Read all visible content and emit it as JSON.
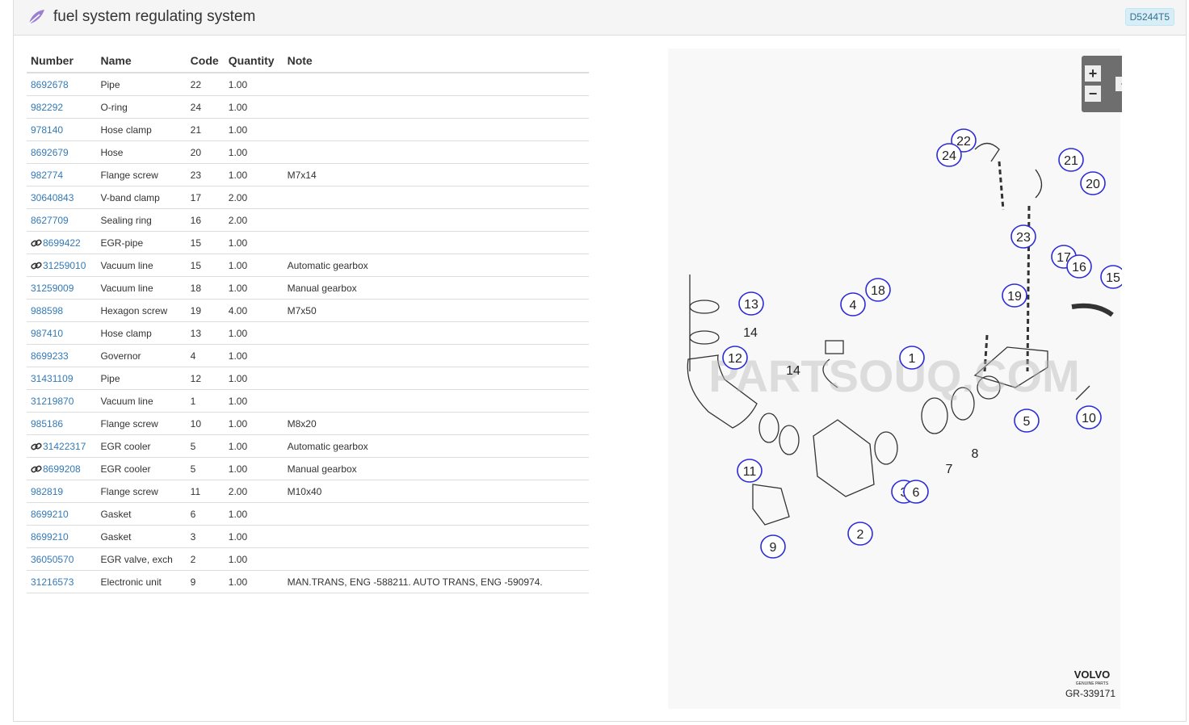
{
  "header": {
    "title": "fuel system regulating system",
    "badge": "D5244T5"
  },
  "table": {
    "columns": [
      "Number",
      "Name",
      "Code",
      "Quantity",
      "Note"
    ],
    "rows": [
      {
        "number": "8692678",
        "name": "Pipe",
        "code": "22",
        "quantity": "1.00",
        "note": ""
      },
      {
        "number": "982292",
        "name": "O-ring",
        "code": "24",
        "quantity": "1.00",
        "note": ""
      },
      {
        "number": "978140",
        "name": "Hose clamp",
        "code": "21",
        "quantity": "1.00",
        "note": ""
      },
      {
        "number": "8692679",
        "name": "Hose",
        "code": "20",
        "quantity": "1.00",
        "note": ""
      },
      {
        "number": "982774",
        "name": "Flange screw",
        "code": "23",
        "quantity": "1.00",
        "note": "M7x14"
      },
      {
        "number": "30640843",
        "name": "V-band clamp",
        "code": "17",
        "quantity": "2.00",
        "note": ""
      },
      {
        "number": "8627709",
        "name": "Sealing ring",
        "code": "16",
        "quantity": "2.00",
        "note": ""
      },
      {
        "number": "8699422",
        "name": "EGR-pipe",
        "code": "15",
        "quantity": "1.00",
        "note": "",
        "link": true
      },
      {
        "number": "31259010",
        "name": "Vacuum line",
        "code": "15",
        "quantity": "1.00",
        "note": "Automatic gearbox",
        "link": true
      },
      {
        "number": "31259009",
        "name": "Vacuum line",
        "code": "18",
        "quantity": "1.00",
        "note": "Manual gearbox"
      },
      {
        "number": "988598",
        "name": "Hexagon screw",
        "code": "19",
        "quantity": "4.00",
        "note": "M7x50"
      },
      {
        "number": "987410",
        "name": "Hose clamp",
        "code": "13",
        "quantity": "1.00",
        "note": ""
      },
      {
        "number": "8699233",
        "name": "Governor",
        "code": "4",
        "quantity": "1.00",
        "note": ""
      },
      {
        "number": "31431109",
        "name": "Pipe",
        "code": "12",
        "quantity": "1.00",
        "note": ""
      },
      {
        "number": "31219870",
        "name": "Vacuum line",
        "code": "1",
        "quantity": "1.00",
        "note": ""
      },
      {
        "number": "985186",
        "name": "Flange screw",
        "code": "10",
        "quantity": "1.00",
        "note": "M8x20"
      },
      {
        "number": "31422317",
        "name": "EGR cooler",
        "code": "5",
        "quantity": "1.00",
        "note": "Automatic gearbox",
        "link": true
      },
      {
        "number": "8699208",
        "name": "EGR cooler",
        "code": "5",
        "quantity": "1.00",
        "note": "Manual gearbox",
        "link": true
      },
      {
        "number": "982819",
        "name": "Flange screw",
        "code": "11",
        "quantity": "2.00",
        "note": "M10x40"
      },
      {
        "number": "8699210",
        "name": "Gasket",
        "code": "6",
        "quantity": "1.00",
        "note": ""
      },
      {
        "number": "8699210",
        "name": "Gasket",
        "code": "3",
        "quantity": "1.00",
        "note": ""
      },
      {
        "number": "36050570",
        "name": "EGR valve, exch",
        "code": "2",
        "quantity": "1.00",
        "note": ""
      },
      {
        "number": "31216573",
        "name": "Electronic unit",
        "code": "9",
        "quantity": "1.00",
        "note": "MAN.TRANS, ENG -588211. AUTO TRANS, ENG -590974."
      }
    ]
  },
  "diagram": {
    "watermark": "PARTSOUQ.COM",
    "brand": "VOLVO",
    "brand_sub": "GENUINE PARTS",
    "code": "GR-339171",
    "controls": {
      "zoom_in": "+",
      "zoom_out": "−"
    },
    "callouts": [
      "22",
      "24",
      "21",
      "20",
      "23",
      "17",
      "16",
      "15",
      "19",
      "18",
      "4",
      "13",
      "14",
      "12",
      "1",
      "14",
      "5",
      "10",
      "7",
      "8",
      "11",
      "3",
      "6",
      "2",
      "9"
    ]
  }
}
